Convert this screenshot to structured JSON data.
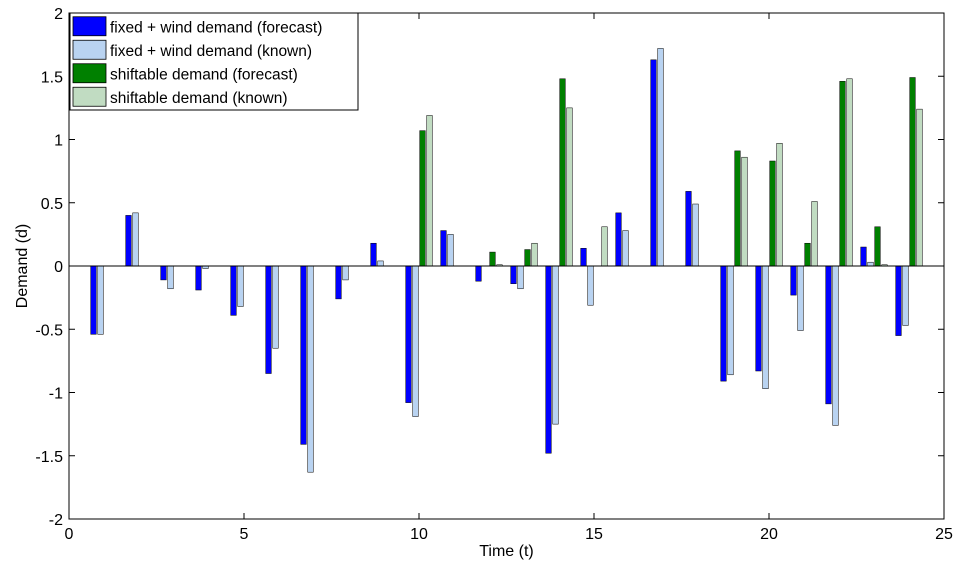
{
  "chart_data": {
    "type": "bar",
    "xlabel": "Time (t)",
    "ylabel": "Demand (d)",
    "xlim": [
      0,
      25
    ],
    "ylim": [
      -2,
      2
    ],
    "xticks": [
      0,
      5,
      10,
      15,
      20,
      25
    ],
    "yticks": [
      -2,
      -1.5,
      -1,
      -0.5,
      0,
      0.5,
      1,
      1.5,
      2
    ],
    "xtick_labels": [
      "0",
      "5",
      "10",
      "15",
      "20",
      "25"
    ],
    "ytick_labels": [
      "-2",
      "-1.5",
      "-1",
      "-0.5",
      "0",
      "0.5",
      "1",
      "1.5",
      "2"
    ],
    "grid": false,
    "legend_position": "top-left",
    "x": [
      1,
      2,
      3,
      4,
      5,
      6,
      7,
      8,
      9,
      10,
      11,
      12,
      13,
      14,
      15,
      16,
      17,
      18,
      19,
      20,
      21,
      22,
      23,
      24
    ],
    "series": [
      {
        "name": "fixed + wind demand (forecast)",
        "color": "#0000ff",
        "values": [
          -0.54,
          0.4,
          -0.11,
          -0.19,
          -0.39,
          -0.85,
          -1.41,
          -0.26,
          0.18,
          -1.08,
          0.28,
          -0.12,
          -0.14,
          -1.48,
          0.14,
          0.42,
          1.63,
          0.59,
          -0.91,
          -0.83,
          -0.23,
          -1.09,
          0.15,
          -0.55
        ]
      },
      {
        "name": "fixed + wind demand (known)",
        "color": "#b9d3f1",
        "values": [
          -0.54,
          0.42,
          -0.18,
          -0.02,
          -0.32,
          -0.65,
          -1.63,
          -0.11,
          0.04,
          -1.19,
          0.25,
          0.0,
          -0.18,
          -1.25,
          -0.31,
          0.28,
          1.72,
          0.49,
          -0.86,
          -0.97,
          -0.51,
          -1.26,
          0.03,
          -0.47
        ]
      },
      {
        "name": "shiftable demand (forecast)",
        "color": "#008000",
        "values": [
          0,
          0,
          0,
          0,
          0,
          0,
          0,
          0,
          0,
          1.07,
          0,
          0.11,
          0.13,
          1.48,
          0,
          0,
          0,
          0,
          0.91,
          0.83,
          0.18,
          1.46,
          0.31,
          1.49
        ]
      },
      {
        "name": "shiftable demand (known)",
        "color": "#c1dcc2",
        "values": [
          0,
          0,
          0,
          0,
          0,
          0,
          0,
          0,
          0,
          1.19,
          0,
          0.01,
          0.18,
          1.25,
          0.31,
          0,
          0,
          0,
          0.86,
          0.97,
          0.51,
          1.48,
          0.01,
          1.24
        ]
      }
    ]
  }
}
